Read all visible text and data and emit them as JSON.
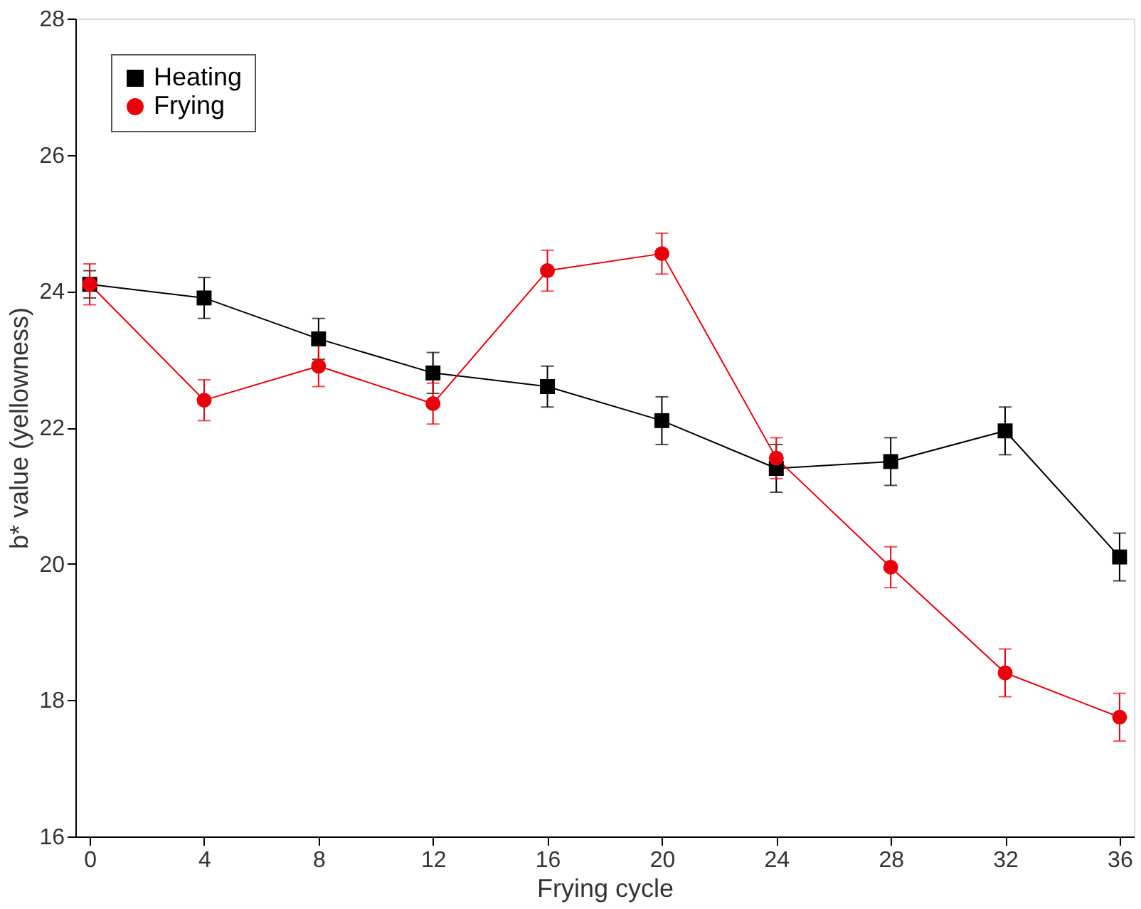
{
  "chart_data": {
    "type": "line",
    "xlabel": "Frying cycle",
    "ylabel": "b* value (yellowness)",
    "x": [
      0,
      4,
      8,
      12,
      16,
      20,
      24,
      28,
      32,
      36
    ],
    "series": [
      {
        "name": "Heating",
        "color": "#000000",
        "marker": "square",
        "values": [
          24.1,
          23.9,
          23.3,
          22.8,
          22.6,
          22.1,
          21.4,
          21.5,
          21.95,
          20.1
        ],
        "errors": [
          0.2,
          0.3,
          0.3,
          0.3,
          0.3,
          0.35,
          0.35,
          0.35,
          0.35,
          0.35
        ]
      },
      {
        "name": "Frying",
        "color": "#e8000b",
        "marker": "circle",
        "values": [
          24.1,
          22.4,
          22.9,
          22.35,
          24.3,
          24.55,
          21.55,
          19.95,
          18.4,
          17.75
        ],
        "errors": [
          0.3,
          0.3,
          0.3,
          0.3,
          0.3,
          0.3,
          0.3,
          0.3,
          0.35,
          0.35
        ]
      }
    ],
    "xlim": [
      -0.5,
      36.5
    ],
    "xticks": [
      0,
      4,
      8,
      12,
      16,
      20,
      24,
      28,
      32,
      36
    ],
    "ylim": [
      16,
      28
    ],
    "yticks": [
      16,
      18,
      20,
      22,
      24,
      26,
      28
    ],
    "grid": false,
    "legend": "top left"
  }
}
